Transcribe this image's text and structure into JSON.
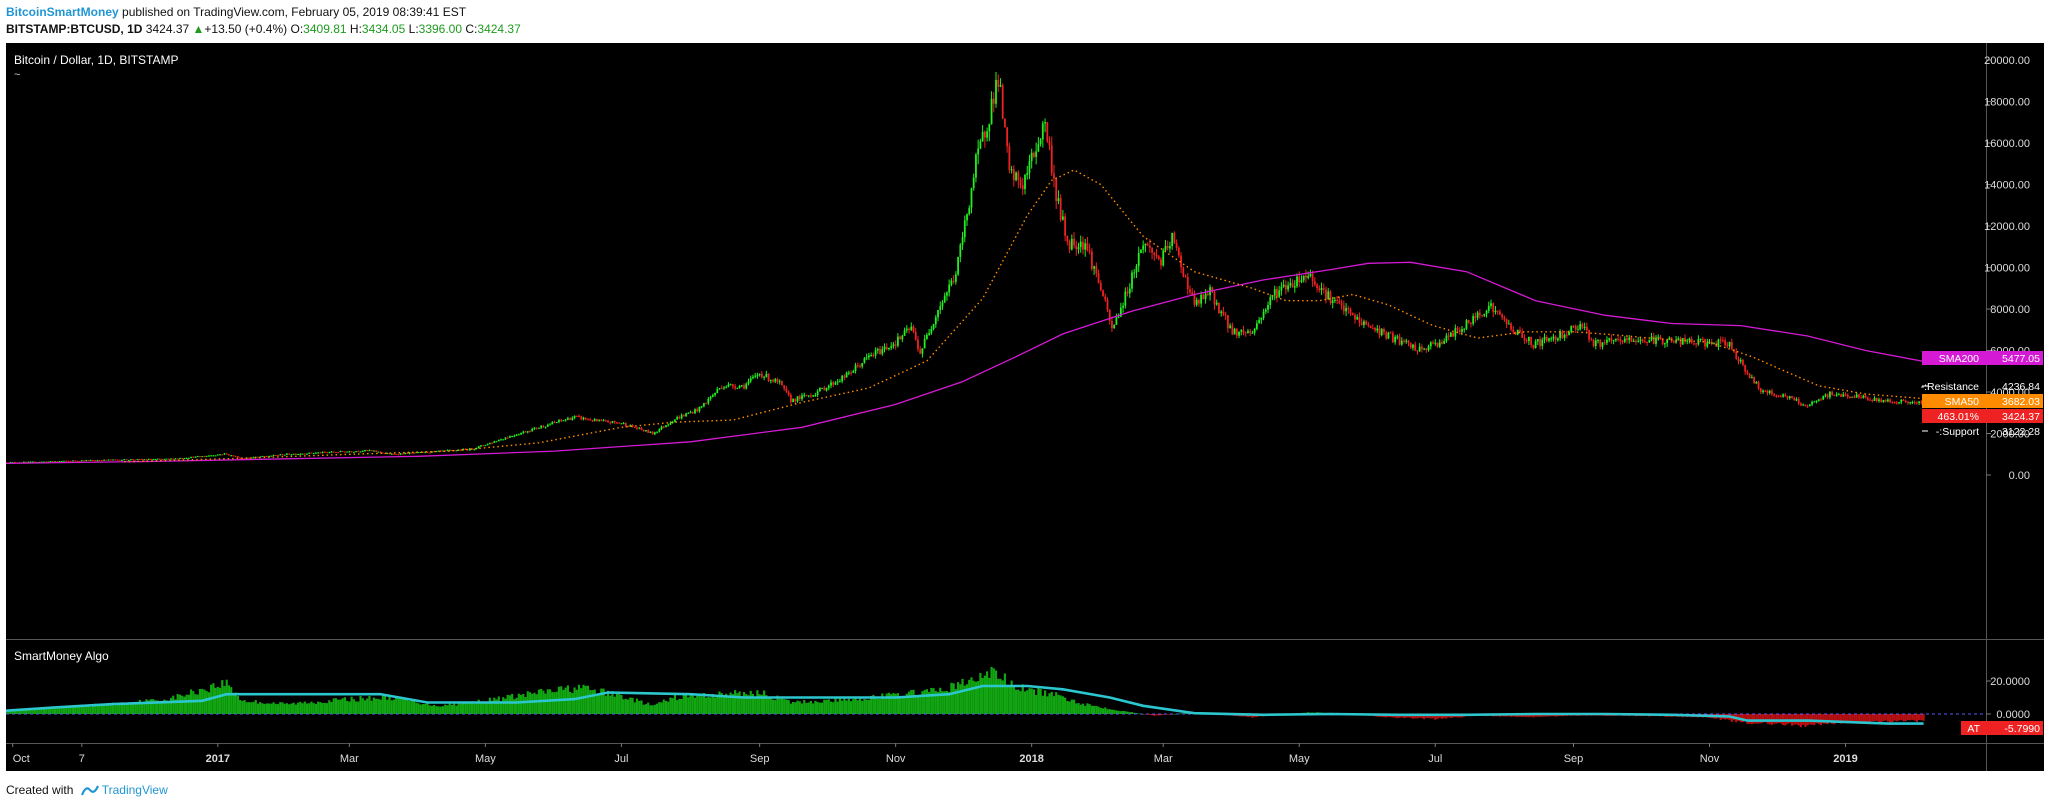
{
  "header": {
    "author": "BitcoinSmartMoney",
    "published_text": "published on TradingView.com, February 05, 2019 08:39:41 EST",
    "symbol": "BITSTAMP:BTCUSD, 1D",
    "last_price": "3424.37",
    "change_arrow": "▲",
    "change": "+13.50 (+0.4%)",
    "o_label": "O:",
    "o_value": "3409.81",
    "h_label": "H:",
    "h_value": "3434.05",
    "l_label": "L:",
    "l_value": "3396.00",
    "c_label": "C:",
    "c_value": "3424.37"
  },
  "main_pane": {
    "title": "Bitcoin / Dollar, 1D, BITSTAMP",
    "subtitle": "~"
  },
  "indicator_pane": {
    "title": "SmartMoney Algo"
  },
  "footer": {
    "created_with": "Created with",
    "brand": "TradingView"
  },
  "colors": {
    "background": "#000000",
    "up_candle": "#22ee22",
    "down_candle": "#ee2222",
    "sma50": "#ff8c00",
    "sma200": "#d41ad4",
    "algo_positive": "#12a612",
    "algo_negative": "#b81010",
    "algo_line": "#2cc6cf",
    "axis_text": "#dddddd"
  },
  "chart_data": [
    {
      "type": "line",
      "title": "Bitcoin / Dollar, 1D, BITSTAMP",
      "x_tick_labels": [
        "Oct",
        "7",
        "2017",
        "Mar",
        "May",
        "Jul",
        "Sep",
        "Nov",
        "2018",
        "Mar",
        "May",
        "Jul",
        "Sep",
        "Nov",
        "2019"
      ],
      "x_tick_dates": [
        "2016-10-01",
        "2016-11-01",
        "2017-01-01",
        "2017-03-01",
        "2017-05-01",
        "2017-07-01",
        "2017-09-01",
        "2017-11-01",
        "2018-01-01",
        "2018-03-01",
        "2018-05-01",
        "2018-07-01",
        "2018-09-01",
        "2018-11-01",
        "2019-01-01"
      ],
      "y_tick_labels": [
        "0.00",
        "2000.00",
        "4000.00",
        "6000.00",
        "8000.00",
        "10000.00",
        "12000.00",
        "14000.00",
        "16000.00",
        "18000.00",
        "20000.00"
      ],
      "ylim": [
        -400,
        20700
      ],
      "series": [
        {
          "kind": "close",
          "dates": [
            "2016-09-28",
            "2016-10-15",
            "2016-11-01",
            "2016-11-20",
            "2016-12-10",
            "2016-12-25",
            "2017-01-04",
            "2017-01-12",
            "2017-02-01",
            "2017-02-20",
            "2017-03-10",
            "2017-03-20",
            "2017-04-05",
            "2017-04-25",
            "2017-05-10",
            "2017-05-25",
            "2017-06-10",
            "2017-06-20",
            "2017-07-01",
            "2017-07-15",
            "2017-07-25",
            "2017-08-05",
            "2017-08-15",
            "2017-08-25",
            "2017-09-01",
            "2017-09-10",
            "2017-09-15",
            "2017-09-25",
            "2017-10-10",
            "2017-10-20",
            "2017-11-01",
            "2017-11-08",
            "2017-11-12",
            "2017-11-20",
            "2017-11-28",
            "2017-12-07",
            "2017-12-12",
            "2017-12-17",
            "2017-12-22",
            "2017-12-28",
            "2018-01-07",
            "2018-01-12",
            "2018-01-17",
            "2018-01-25",
            "2018-02-01",
            "2018-02-06",
            "2018-02-12",
            "2018-02-20",
            "2018-02-28",
            "2018-03-05",
            "2018-03-15",
            "2018-03-22",
            "2018-04-01",
            "2018-04-10",
            "2018-04-20",
            "2018-05-05",
            "2018-05-15",
            "2018-05-28",
            "2018-06-10",
            "2018-06-24",
            "2018-07-05",
            "2018-07-17",
            "2018-07-25",
            "2018-08-05",
            "2018-08-14",
            "2018-08-25",
            "2018-09-05",
            "2018-09-10",
            "2018-09-25",
            "2018-10-10",
            "2018-10-25",
            "2018-11-10",
            "2018-11-14",
            "2018-11-20",
            "2018-11-25",
            "2018-12-05",
            "2018-12-15",
            "2018-12-25",
            "2019-01-05",
            "2019-01-15",
            "2019-01-25",
            "2019-02-05"
          ],
          "values": [
            605,
            640,
            700,
            740,
            770,
            900,
            1020,
            800,
            1000,
            1100,
            1180,
            1000,
            1100,
            1250,
            1800,
            2300,
            2800,
            2600,
            2500,
            2000,
            2700,
            3200,
            4300,
            4300,
            4900,
            4400,
            3600,
            3900,
            4800,
            5700,
            6400,
            7100,
            5900,
            8000,
            9700,
            15000,
            17000,
            19200,
            14500,
            14000,
            17000,
            13500,
            11200,
            11200,
            9000,
            7000,
            8600,
            11200,
            10300,
            11400,
            8200,
            8800,
            6900,
            6900,
            8800,
            9700,
            8500,
            7400,
            6700,
            6000,
            6500,
            7400,
            8200,
            7000,
            6300,
            6700,
            7300,
            6300,
            6500,
            6500,
            6400,
            6300,
            5600,
            4600,
            4000,
            3800,
            3300,
            3900,
            3800,
            3600,
            3550,
            3424
          ]
        },
        {
          "name": "SMA50",
          "dates": [
            "2016-11-20",
            "2017-01-10",
            "2017-03-01",
            "2017-04-15",
            "2017-05-25",
            "2017-07-01",
            "2017-07-25",
            "2017-08-20",
            "2017-09-20",
            "2017-10-20",
            "2017-11-15",
            "2017-12-10",
            "2017-12-30",
            "2018-01-10",
            "2018-01-20",
            "2018-02-01",
            "2018-02-20",
            "2018-03-15",
            "2018-04-10",
            "2018-04-25",
            "2018-05-10",
            "2018-05-25",
            "2018-06-10",
            "2018-06-30",
            "2018-07-20",
            "2018-08-10",
            "2018-09-01",
            "2018-09-20",
            "2018-10-10",
            "2018-11-01",
            "2018-11-20",
            "2018-12-05",
            "2018-12-20",
            "2019-01-10",
            "2019-02-05"
          ],
          "values": [
            640,
            800,
            1000,
            1150,
            1550,
            2300,
            2550,
            2650,
            3500,
            4200,
            5500,
            8500,
            12500,
            14200,
            14700,
            14000,
            11500,
            9800,
            9000,
            8400,
            8400,
            8700,
            8200,
            7200,
            6600,
            6900,
            6900,
            6750,
            6550,
            6400,
            5700,
            5000,
            4300,
            3900,
            3682
          ]
        },
        {
          "name": "SMA200",
          "dates": [
            "2016-09-28",
            "2016-12-01",
            "2017-02-01",
            "2017-04-01",
            "2017-06-01",
            "2017-08-01",
            "2017-09-20",
            "2017-11-01",
            "2017-12-01",
            "2017-12-25",
            "2018-01-15",
            "2018-02-15",
            "2018-03-15",
            "2018-04-15",
            "2018-05-15",
            "2018-06-01",
            "2018-06-20",
            "2018-07-15",
            "2018-08-15",
            "2018-09-15",
            "2018-10-15",
            "2018-11-15",
            "2018-12-15",
            "2019-01-10",
            "2019-02-05"
          ],
          "values": [
            560,
            650,
            780,
            900,
            1150,
            1600,
            2300,
            3400,
            4500,
            5700,
            6800,
            7900,
            8700,
            9400,
            9900,
            10200,
            10250,
            9800,
            8400,
            7700,
            7300,
            7200,
            6700,
            6000,
            5477
          ]
        }
      ],
      "price_labels": [
        {
          "label": "SMA200",
          "value": "5477.05"
        },
        {
          "label": "Resistance",
          "value": "4236.84"
        },
        {
          "label": "SMA50",
          "value": "3682.03"
        },
        {
          "label": "463.01%",
          "value": "3424.37"
        },
        {
          "label": "Support",
          "value": "3122.28"
        }
      ]
    },
    {
      "type": "area",
      "title": "SmartMoney Algo",
      "y_tick_labels": [
        "20.0000",
        "0.0000"
      ],
      "ylim": [
        -6.5,
        27
      ],
      "series": [
        {
          "kind": "histogram",
          "dates": [
            "2016-09-28",
            "2016-10-20",
            "2016-11-15",
            "2016-12-10",
            "2016-12-28",
            "2017-01-05",
            "2017-01-12",
            "2017-02-01",
            "2017-03-01",
            "2017-03-20",
            "2017-04-10",
            "2017-05-01",
            "2017-05-25",
            "2017-06-12",
            "2017-07-01",
            "2017-07-15",
            "2017-07-25",
            "2017-08-15",
            "2017-09-01",
            "2017-09-15",
            "2017-10-01",
            "2017-10-20",
            "2017-11-05",
            "2017-11-20",
            "2017-12-05",
            "2017-12-15",
            "2017-12-25",
            "2018-01-10",
            "2018-01-25",
            "2018-02-10",
            "2018-02-25",
            "2018-03-15",
            "2018-04-10",
            "2018-05-05",
            "2018-05-20",
            "2018-06-10",
            "2018-07-01",
            "2018-07-20",
            "2018-08-10",
            "2018-09-01",
            "2018-09-20",
            "2018-10-15",
            "2018-11-01",
            "2018-11-15",
            "2018-12-01",
            "2018-12-15",
            "2019-01-01",
            "2019-02-05"
          ],
          "values": [
            2,
            4,
            6,
            9,
            16,
            19,
            8,
            6,
            9,
            10,
            5,
            8,
            13,
            16,
            11,
            5,
            10,
            12,
            13,
            7,
            8,
            10,
            12,
            14,
            20,
            26,
            16,
            12,
            6,
            2,
            -1,
            1,
            -2,
            1,
            0.5,
            -2,
            -3,
            -1,
            -2,
            -1,
            -1,
            -1.5,
            -2,
            -5,
            -6,
            -7,
            -5,
            -4
          ]
        },
        {
          "name": "AT",
          "dates": [
            "2016-09-28",
            "2016-10-20",
            "2016-11-15",
            "2016-12-25",
            "2017-01-05",
            "2017-02-20",
            "2017-03-15",
            "2017-04-05",
            "2017-05-15",
            "2017-06-10",
            "2017-06-25",
            "2017-08-01",
            "2017-08-25",
            "2017-10-01",
            "2017-11-01",
            "2017-11-25",
            "2017-12-10",
            "2017-12-30",
            "2018-01-15",
            "2018-02-05",
            "2018-02-20",
            "2018-03-15",
            "2018-04-15",
            "2018-05-15",
            "2018-06-15",
            "2018-07-15",
            "2018-08-15",
            "2018-09-15",
            "2018-10-15",
            "2018-11-10",
            "2018-11-18",
            "2018-12-15",
            "2019-01-20",
            "2019-02-05"
          ],
          "values": [
            2,
            4,
            6,
            8,
            12,
            12,
            12,
            7,
            7,
            9,
            13,
            12,
            10,
            10,
            10,
            12,
            17,
            17,
            15,
            10,
            5,
            0.5,
            -0.5,
            0,
            -0.5,
            -0.5,
            0,
            0,
            -0.5,
            -1.5,
            -4,
            -4,
            -5.8,
            -5.8
          ]
        }
      ],
      "price_labels": [
        {
          "label": "AT",
          "value": "-5.7990"
        }
      ]
    }
  ]
}
